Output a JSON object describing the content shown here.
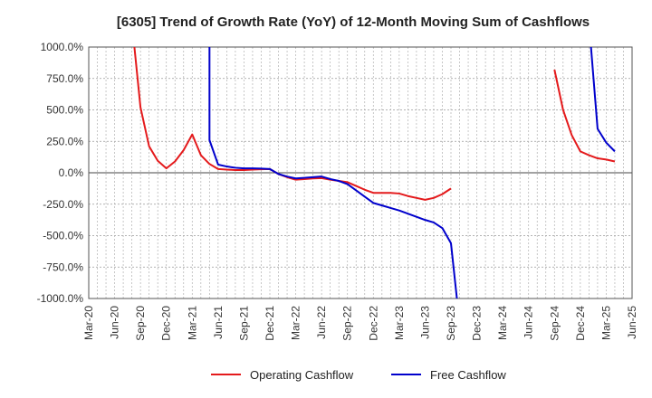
{
  "chart_data": {
    "type": "line",
    "title": "[6305]  Trend of Growth Rate (YoY) of 12-Month Moving Sum of Cashflows",
    "xlabel": "",
    "ylabel": "",
    "ylim": [
      -1000,
      1000
    ],
    "y_ticks": [
      "1000.0%",
      "750.0%",
      "500.0%",
      "250.0%",
      "0.0%",
      "-250.0%",
      "-500.0%",
      "-750.0%",
      "-1000.0%"
    ],
    "y_tick_values": [
      1000,
      750,
      500,
      250,
      0,
      -250,
      -500,
      -750,
      -1000
    ],
    "x_ticks": [
      "Mar-20",
      "Jun-20",
      "Sep-20",
      "Dec-20",
      "Mar-21",
      "Jun-21",
      "Sep-21",
      "Dec-21",
      "Mar-22",
      "Jun-22",
      "Sep-22",
      "Dec-22",
      "Mar-23",
      "Jun-23",
      "Sep-23",
      "Dec-23",
      "Mar-24",
      "Jun-24",
      "Sep-24",
      "Dec-24",
      "Mar-25",
      "Jun-25"
    ],
    "grid": true,
    "legend_position": "bottom",
    "series": [
      {
        "name": "Operating Cashflow",
        "color": "#e41a1c",
        "points": [
          [
            "Aug-20",
            1200
          ],
          [
            "Sep-20",
            520
          ],
          [
            "Oct-20",
            210
          ],
          [
            "Nov-20",
            95
          ],
          [
            "Dec-20",
            35
          ],
          [
            "Jan-21",
            90
          ],
          [
            "Feb-21",
            180
          ],
          [
            "Mar-21",
            305
          ],
          [
            "Apr-21",
            140
          ],
          [
            "May-21",
            70
          ],
          [
            "Jun-21",
            30
          ],
          [
            "Jul-21",
            25
          ],
          [
            "Aug-21",
            22
          ],
          [
            "Sep-21",
            22
          ],
          [
            "Oct-21",
            25
          ],
          [
            "Nov-21",
            28
          ],
          [
            "Dec-21",
            30
          ],
          [
            "Jan-22",
            -10
          ],
          [
            "Feb-22",
            -35
          ],
          [
            "Mar-22",
            -55
          ],
          [
            "Apr-22",
            -50
          ],
          [
            "May-22",
            -45
          ],
          [
            "Jun-22",
            -42
          ],
          [
            "Jul-22",
            -55
          ],
          [
            "Aug-22",
            -65
          ],
          [
            "Sep-22",
            -75
          ],
          [
            "Oct-22",
            -105
          ],
          [
            "Nov-22",
            -135
          ],
          [
            "Dec-22",
            -160
          ],
          [
            "Jan-23",
            -160
          ],
          [
            "Feb-23",
            -160
          ],
          [
            "Mar-23",
            -165
          ],
          [
            "Apr-23",
            -185
          ],
          [
            "May-23",
            -200
          ],
          [
            "Jun-23",
            -215
          ],
          [
            "Jul-23",
            -200
          ],
          [
            "Aug-23",
            -170
          ],
          [
            "Sep-23",
            -125
          ],
          null,
          [
            "Sep-24",
            820
          ],
          [
            "Oct-24",
            500
          ],
          [
            "Nov-24",
            300
          ],
          [
            "Dec-24",
            170
          ],
          [
            "Jan-25",
            140
          ],
          [
            "Feb-25",
            115
          ],
          [
            "Mar-25",
            105
          ],
          [
            "Apr-25",
            90
          ]
        ]
      },
      {
        "name": "Free Cashflow",
        "color": "#0000cc",
        "points": [
          [
            "May-21",
            1200
          ],
          [
            "May-21",
            260
          ],
          [
            "Jun-21",
            65
          ],
          [
            "Jul-21",
            50
          ],
          [
            "Aug-21",
            40
          ],
          [
            "Sep-21",
            35
          ],
          [
            "Oct-21",
            35
          ],
          [
            "Nov-21",
            33
          ],
          [
            "Dec-21",
            30
          ],
          [
            "Jan-22",
            -10
          ],
          [
            "Feb-22",
            -30
          ],
          [
            "Mar-22",
            -45
          ],
          [
            "Apr-22",
            -40
          ],
          [
            "May-22",
            -35
          ],
          [
            "Jun-22",
            -30
          ],
          [
            "Jul-22",
            -50
          ],
          [
            "Aug-22",
            -65
          ],
          [
            "Sep-22",
            -90
          ],
          [
            "Oct-22",
            -140
          ],
          [
            "Nov-22",
            -190
          ],
          [
            "Dec-22",
            -240
          ],
          [
            "Jan-23",
            -260
          ],
          [
            "Feb-23",
            -280
          ],
          [
            "Mar-23",
            -300
          ],
          [
            "Apr-23",
            -325
          ],
          [
            "May-23",
            -350
          ],
          [
            "Jun-23",
            -375
          ],
          [
            "Jul-23",
            -395
          ],
          [
            "Aug-23",
            -440
          ],
          [
            "Sep-23",
            -560
          ],
          [
            "Oct-23",
            -1200
          ],
          null,
          [
            "Jan-25",
            1200
          ],
          [
            "Feb-25",
            350
          ],
          [
            "Mar-25",
            240
          ],
          [
            "Apr-25",
            170
          ]
        ]
      }
    ]
  }
}
